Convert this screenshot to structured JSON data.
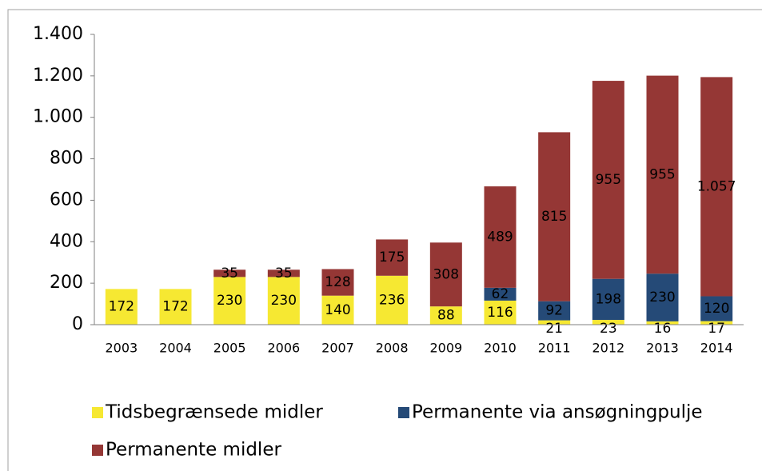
{
  "chart_data": {
    "type": "stacked_bar",
    "categories": [
      "2003",
      "2004",
      "2005",
      "2006",
      "2007",
      "2008",
      "2009",
      "2010",
      "2011",
      "2012",
      "2013",
      "2014"
    ],
    "series": [
      {
        "name": "Tidsbegrænsede midler",
        "color": "#f6e832",
        "values": [
          172,
          172,
          230,
          230,
          140,
          236,
          88,
          116,
          21,
          23,
          16,
          17
        ]
      },
      {
        "name": "Permanente via ansøgningpulje",
        "color": "#254a77",
        "values": [
          null,
          null,
          null,
          null,
          null,
          null,
          null,
          62,
          92,
          198,
          230,
          120
        ]
      },
      {
        "name": "Permanente midler",
        "color": "#953735",
        "values": [
          null,
          null,
          35,
          35,
          128,
          175,
          308,
          489,
          815,
          955,
          955,
          1057
        ],
        "value_labels": [
          null,
          null,
          "35",
          "35",
          "128",
          "175",
          "308",
          "489",
          "815",
          "955",
          "955",
          "1.057"
        ]
      }
    ],
    "ylim": [
      0,
      1400
    ],
    "yticks": [
      0,
      200,
      400,
      600,
      800,
      {
        "value": 1000,
        "label": "1.000"
      },
      {
        "value": 1200,
        "label": "1.200"
      },
      {
        "value": 1400,
        "label": "1.400"
      }
    ]
  }
}
